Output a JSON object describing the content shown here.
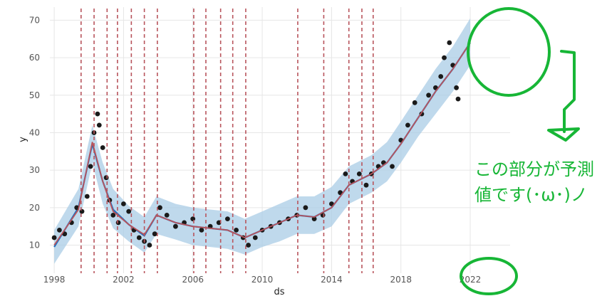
{
  "chart_data": {
    "type": "line",
    "title": "",
    "xlabel": "ds",
    "ylabel": "y",
    "xlim": [
      1997.75,
      2024.3
    ],
    "ylim": [
      2.5,
      73.5
    ],
    "grid": true,
    "x_ticks": [
      {
        "value": 1998,
        "label": "1998"
      },
      {
        "value": 2002,
        "label": "2002"
      },
      {
        "value": 2006,
        "label": "2006"
      },
      {
        "value": 2010,
        "label": "2010"
      },
      {
        "value": 2014,
        "label": "2014"
      },
      {
        "value": 2018,
        "label": "2018"
      },
      {
        "value": 2022,
        "label": "2022"
      }
    ],
    "y_ticks": [
      {
        "value": 10,
        "label": "10"
      },
      {
        "value": 20,
        "label": "20"
      },
      {
        "value": 30,
        "label": "30"
      },
      {
        "value": 40,
        "label": "40"
      },
      {
        "value": 50,
        "label": "50"
      },
      {
        "value": 60,
        "label": "60"
      },
      {
        "value": 70,
        "label": "70"
      }
    ],
    "forecast": {
      "x": [
        1998.0,
        1999.4,
        2000.2,
        2000.8,
        2001.4,
        2002.3,
        2003.2,
        2003.9,
        2005.0,
        2006.0,
        2007.0,
        2008.0,
        2009.0,
        2010.0,
        2011.0,
        2012.0,
        2013.0,
        2014.0,
        2015.0,
        2016.3,
        2017.2,
        2018.0,
        2019.0,
        2020.0,
        2021.0,
        2022.0
      ],
      "yhat": [
        9.5,
        20.0,
        37.0,
        27.0,
        19.5,
        15.5,
        12.5,
        18.0,
        16.0,
        15.0,
        14.5,
        14.0,
        12.0,
        14.0,
        16.0,
        18.0,
        17.5,
        20.0,
        26.0,
        29.0,
        32.0,
        37.0,
        44.0,
        51.0,
        57.0,
        64.0
      ],
      "lower": [
        5.0,
        15.0,
        32.0,
        21.0,
        14.5,
        11.0,
        8.0,
        13.0,
        11.5,
        10.0,
        9.5,
        9.0,
        7.5,
        9.5,
        11.0,
        13.0,
        13.0,
        15.0,
        21.0,
        24.0,
        27.0,
        32.0,
        39.0,
        45.0,
        51.0,
        58.0
      ],
      "upper": [
        14.0,
        25.0,
        42.0,
        32.0,
        25.0,
        20.5,
        17.5,
        23.0,
        21.0,
        20.0,
        19.5,
        19.0,
        17.0,
        19.0,
        21.0,
        23.0,
        23.0,
        25.5,
        31.0,
        34.0,
        37.5,
        43.0,
        50.0,
        57.0,
        63.0,
        70.5
      ]
    },
    "trend": {
      "x": [
        1998.0,
        1999.4,
        2000.2,
        2000.8,
        2001.4,
        2002.3,
        2003.2,
        2003.9,
        2005.0,
        2006.0,
        2007.0,
        2008.0,
        2009.0,
        2010.0,
        2011.0,
        2012.0,
        2013.0,
        2014.0,
        2015.0,
        2016.3,
        2017.2,
        2018.0,
        2019.0,
        2020.0,
        2021.0,
        2022.0
      ],
      "y": [
        10.0,
        19.5,
        37.5,
        27.0,
        19.0,
        15.5,
        12.8,
        18.0,
        16.0,
        15.0,
        14.5,
        14.0,
        12.0,
        14.0,
        16.0,
        18.0,
        17.5,
        20.0,
        26.0,
        29.0,
        32.0,
        37.0,
        44.0,
        51.0,
        57.0,
        64.0
      ]
    },
    "observed": {
      "x": [
        1998.0,
        1998.3,
        1998.6,
        1999.0,
        1999.3,
        1999.6,
        1999.9,
        2000.1,
        2000.3,
        2000.5,
        2000.6,
        2000.8,
        2001.0,
        2001.2,
        2001.4,
        2001.7,
        2002.0,
        2002.3,
        2002.6,
        2002.9,
        2003.2,
        2003.5,
        2003.8,
        2004.1,
        2004.5,
        2005.0,
        2005.5,
        2006.0,
        2006.5,
        2007.0,
        2007.5,
        2008.0,
        2008.5,
        2008.9,
        2009.2,
        2009.6,
        2010.0,
        2010.5,
        2011.0,
        2011.5,
        2012.0,
        2012.5,
        2013.0,
        2013.5,
        2014.0,
        2014.5,
        2014.8,
        2015.2,
        2015.6,
        2016.0,
        2016.3,
        2016.7,
        2017.0,
        2017.5,
        2018.0,
        2018.4,
        2018.8,
        2019.2,
        2019.6,
        2020.0,
        2020.3,
        2020.5,
        2020.8,
        2021.0,
        2021.2,
        2021.3
      ],
      "y": [
        12.0,
        14.0,
        13.0,
        16.0,
        20.0,
        19.0,
        23.0,
        31.0,
        40.0,
        45.0,
        42.0,
        36.0,
        28.0,
        22.0,
        18.0,
        16.0,
        21.0,
        19.0,
        14.0,
        12.0,
        11.0,
        10.0,
        13.0,
        20.0,
        18.0,
        15.0,
        16.0,
        17.0,
        14.0,
        15.0,
        16.0,
        17.0,
        14.0,
        12.0,
        10.0,
        12.0,
        14.0,
        15.0,
        16.0,
        17.0,
        18.0,
        20.0,
        17.0,
        18.0,
        21.0,
        24.0,
        29.0,
        27.0,
        29.0,
        26.0,
        29.0,
        31.0,
        32.0,
        31.0,
        38.0,
        42.0,
        48.0,
        45.0,
        50.0,
        52.0,
        55.0,
        60.0,
        64.0,
        58.0,
        52.0,
        49.0
      ]
    },
    "changepoints_x": [
      1999.55,
      2000.3,
      2001.05,
      2001.65,
      2002.45,
      2003.2,
      2003.95,
      2006.05,
      2006.75,
      2007.6,
      2008.3,
      2009.05,
      2012.05,
      2013.55,
      2015.0,
      2015.75,
      2016.4
    ],
    "colors": {
      "observed": "#1a1a1a",
      "forecast_line": "#1f6fbf",
      "interval_fill": "#a9cce6",
      "trend": "#b8545c",
      "changepoint": "#b8545c",
      "annotation": "#17b636"
    },
    "annotations": {
      "note_line1": "この部分が予測",
      "note_line2": "値です(･ω･)ノ"
    }
  }
}
